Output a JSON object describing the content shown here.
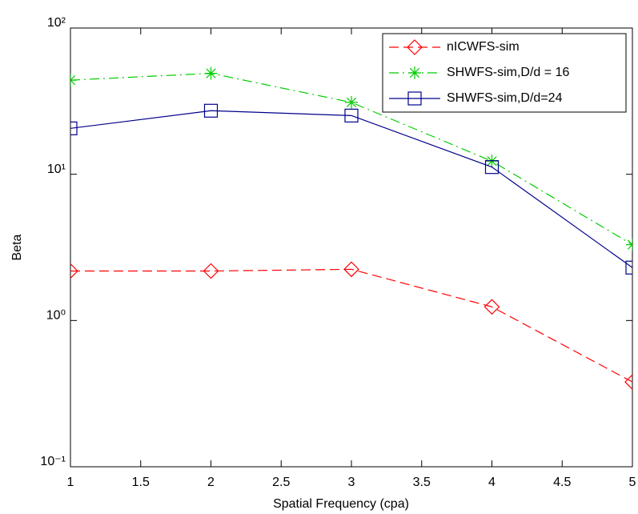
{
  "chart_data": {
    "type": "line",
    "xlabel": "Spatial Frequency (cpa)",
    "ylabel": "Beta",
    "x": [
      1,
      2,
      3,
      4,
      5
    ],
    "series": [
      {
        "name": "nICWFS-sim",
        "color": "#ff0000",
        "linestyle": "dashed",
        "marker": "diamond",
        "values": [
          2.18,
          2.18,
          2.24,
          1.24,
          0.38
        ]
      },
      {
        "name": "SHWFS-sim,D/d = 16",
        "color": "#00cc00",
        "linestyle": "dashdot",
        "marker": "star",
        "values": [
          44,
          49,
          31,
          12.3,
          3.3
        ]
      },
      {
        "name": "SHWFS-sim,D/d=24",
        "color": "#00008b",
        "linestyle": "solid",
        "marker": "square",
        "values": [
          20.6,
          27.2,
          25.2,
          11.2,
          2.3
        ]
      }
    ],
    "xlim": [
      1,
      5
    ],
    "xticks": [
      1,
      1.5,
      2,
      2.5,
      3,
      3.5,
      4,
      4.5,
      5
    ],
    "yscale": "log",
    "ylim": [
      0.1,
      100
    ],
    "yticks": [
      {
        "value": 0.1,
        "label": "10⁻¹"
      },
      {
        "value": 1,
        "label": "10⁰"
      },
      {
        "value": 10,
        "label": "10¹"
      },
      {
        "value": 100,
        "label": "10²"
      }
    ],
    "legend": "upper right",
    "grid": false
  }
}
